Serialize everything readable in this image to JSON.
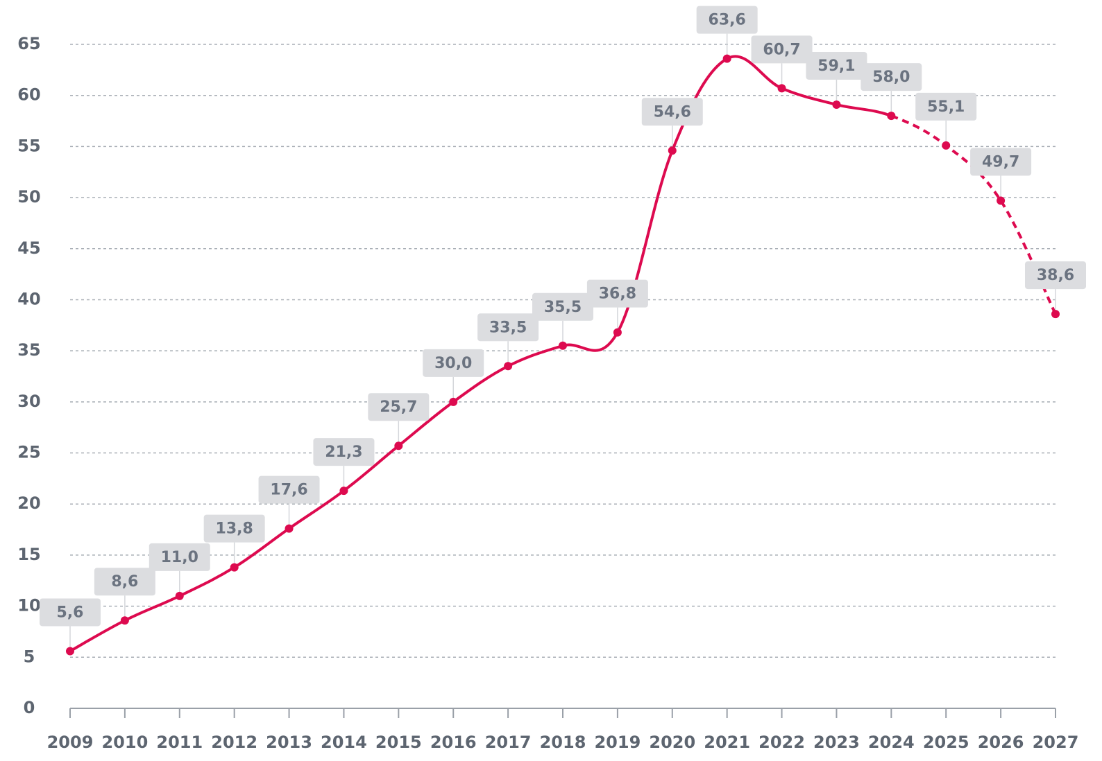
{
  "chart_data": {
    "type": "line",
    "categories": [
      "2009",
      "2010",
      "2011",
      "2012",
      "2013",
      "2014",
      "2015",
      "2016",
      "2017",
      "2018",
      "2019",
      "2020",
      "2021",
      "2022",
      "2023",
      "2024",
      "2025",
      "2026",
      "2027"
    ],
    "values": [
      5.6,
      8.6,
      11.0,
      13.8,
      17.6,
      21.3,
      25.7,
      30.0,
      33.5,
      35.5,
      36.8,
      54.6,
      63.6,
      60.7,
      59.1,
      58.0,
      55.1,
      49.7,
      38.6
    ],
    "value_labels": [
      "5,6",
      "8,6",
      "11,0",
      "13,8",
      "17,6",
      "21,3",
      "25,7",
      "30,0",
      "33,5",
      "35,5",
      "36,8",
      "54,6",
      "63,6",
      "60,7",
      "59,1",
      "58,0",
      "55,1",
      "49,7",
      "38,6"
    ],
    "color": "#dd0a4f",
    "dashed_from": "2024",
    "ylim": [
      0,
      65
    ],
    "yticks": [
      0,
      5,
      10,
      15,
      20,
      25,
      30,
      35,
      40,
      45,
      50,
      55,
      60,
      65
    ],
    "grid": true
  }
}
